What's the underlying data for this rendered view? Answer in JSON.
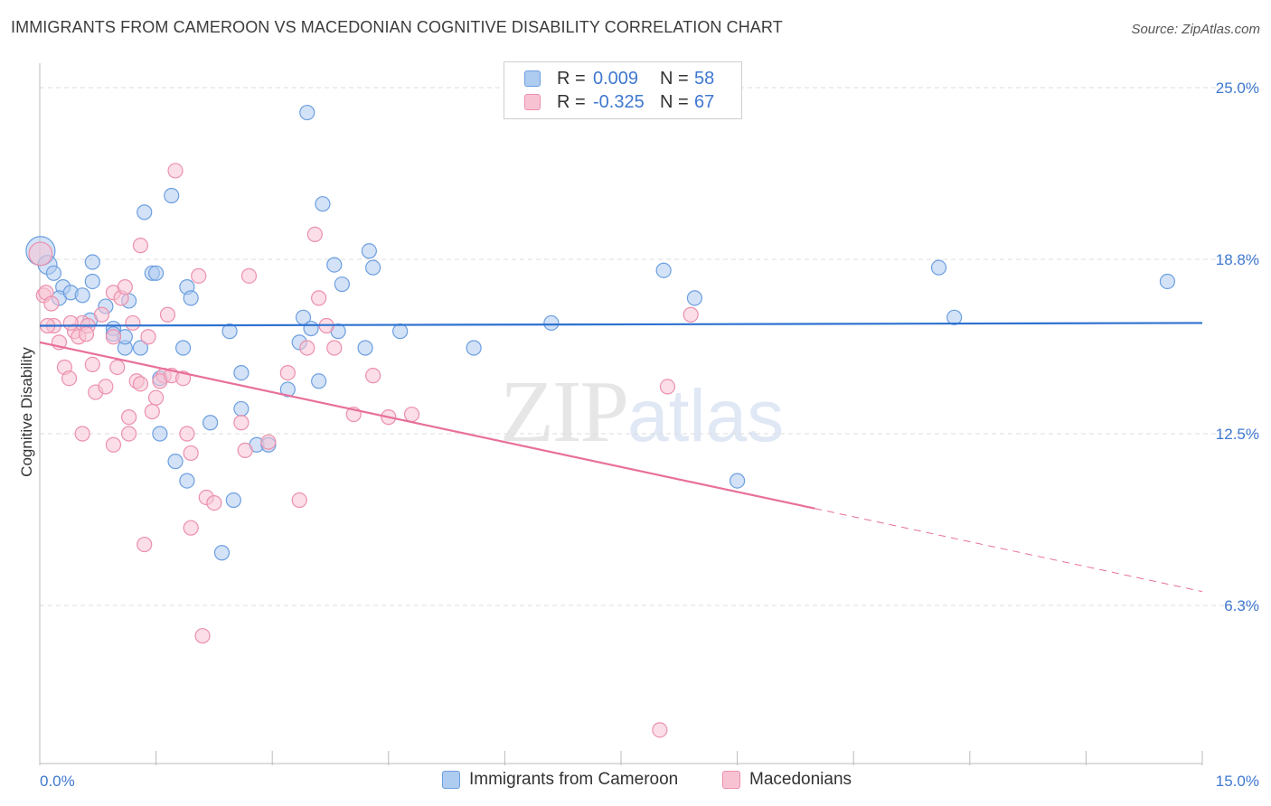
{
  "title": "IMMIGRANTS FROM CAMEROON VS MACEDONIAN COGNITIVE DISABILITY CORRELATION CHART",
  "source": "Source: ZipAtlas.com",
  "watermark": {
    "zip": "ZIP",
    "atlas": "atlas"
  },
  "legend_top": {
    "rows": [
      {
        "r_label": "R =",
        "r_value": "0.009",
        "n_label": "N =",
        "n_value": "58"
      },
      {
        "r_label": "R =",
        "r_value": "-0.325",
        "n_label": "N =",
        "n_value": "67"
      }
    ]
  },
  "colors": {
    "blue_fill": "#aecbf0",
    "blue_stroke": "#6c9fe0",
    "blue_line": "#2f72d0",
    "pink_fill": "#f7c3d3",
    "pink_stroke": "#ec90ad",
    "pink_line": "#e8709a",
    "tick_text": "#3f78d0",
    "grid": "#dddddd"
  },
  "chart_data": {
    "type": "scatter",
    "title": "IMMIGRANTS FROM CAMEROON VS MACEDONIAN COGNITIVE DISABILITY CORRELATION CHART",
    "xlabel": "",
    "ylabel": "Cognitive Disability",
    "xlim": [
      0,
      15
    ],
    "ylim": [
      0,
      25.8
    ],
    "x_tick_labels": [
      "0.0%",
      "15.0%"
    ],
    "y_ticks": [
      6.3,
      12.5,
      18.8,
      25.0
    ],
    "y_tick_labels": [
      "6.3%",
      "12.5%",
      "18.8%",
      "25.0%"
    ],
    "grid": true,
    "legend_position": "top-center",
    "series": [
      {
        "name": "Immigrants from Cameroon",
        "r": 0.009,
        "n": 58,
        "trend": {
          "x": [
            0,
            15
          ],
          "y": [
            16.4,
            16.5
          ]
        },
        "points": [
          [
            0.01,
            19.1,
            2
          ],
          [
            0.1,
            18.6,
            1.3
          ],
          [
            0.18,
            18.3,
            1
          ],
          [
            0.3,
            17.8,
            1
          ],
          [
            0.25,
            17.4,
            1
          ],
          [
            0.4,
            17.6,
            1
          ],
          [
            0.55,
            17.5,
            1
          ],
          [
            0.68,
            18.7,
            1
          ],
          [
            0.68,
            18.0,
            1
          ],
          [
            0.85,
            17.1,
            1
          ],
          [
            0.65,
            16.6,
            1
          ],
          [
            0.95,
            16.3,
            1
          ],
          [
            1.15,
            17.3,
            1
          ],
          [
            1.45,
            18.3,
            1
          ],
          [
            1.5,
            18.3,
            1
          ],
          [
            1.35,
            20.5,
            1
          ],
          [
            1.7,
            21.1,
            1
          ],
          [
            1.9,
            17.8,
            1
          ],
          [
            1.95,
            17.4,
            1
          ],
          [
            1.1,
            15.6,
            1
          ],
          [
            0.95,
            16.1,
            1
          ],
          [
            1.1,
            16.0,
            1
          ],
          [
            1.3,
            15.6,
            1
          ],
          [
            1.85,
            15.6,
            1
          ],
          [
            2.45,
            16.2,
            1
          ],
          [
            2.6,
            14.7,
            1
          ],
          [
            2.6,
            13.4,
            1
          ],
          [
            2.2,
            12.9,
            1
          ],
          [
            1.55,
            14.5,
            1
          ],
          [
            1.55,
            12.5,
            1
          ],
          [
            1.75,
            11.5,
            1
          ],
          [
            1.9,
            10.8,
            1
          ],
          [
            2.5,
            10.1,
            1
          ],
          [
            2.35,
            8.2,
            1
          ],
          [
            2.8,
            12.1,
            1
          ],
          [
            2.95,
            12.1,
            1
          ],
          [
            3.2,
            14.1,
            1
          ],
          [
            3.35,
            15.8,
            1
          ],
          [
            3.4,
            16.7,
            1
          ],
          [
            3.5,
            16.3,
            1
          ],
          [
            3.6,
            14.4,
            1
          ],
          [
            3.65,
            20.8,
            1
          ],
          [
            3.8,
            18.6,
            1
          ],
          [
            3.85,
            16.2,
            1
          ],
          [
            3.9,
            17.9,
            1
          ],
          [
            4.2,
            15.6,
            1
          ],
          [
            4.25,
            19.1,
            1
          ],
          [
            4.3,
            18.5,
            1
          ],
          [
            4.65,
            16.2,
            1
          ],
          [
            3.45,
            24.1,
            1
          ],
          [
            5.6,
            15.6,
            1
          ],
          [
            6.6,
            16.5,
            1
          ],
          [
            8.05,
            18.4,
            1
          ],
          [
            8.45,
            17.4,
            1
          ],
          [
            9.0,
            10.8,
            1
          ],
          [
            11.6,
            18.5,
            1
          ],
          [
            11.8,
            16.7,
            1
          ],
          [
            14.55,
            18.0,
            1
          ]
        ]
      },
      {
        "name": "Macedonians",
        "r": -0.325,
        "n": 67,
        "trend": {
          "x": [
            0,
            10
          ],
          "y": [
            15.8,
            9.8
          ]
        },
        "trend_dashed": {
          "x": [
            10,
            15
          ],
          "y": [
            9.8,
            6.8
          ]
        },
        "points": [
          [
            0.01,
            19.0,
            1.6
          ],
          [
            0.05,
            17.5,
            1
          ],
          [
            0.08,
            17.6,
            1
          ],
          [
            0.15,
            17.2,
            1
          ],
          [
            0.18,
            16.4,
            1
          ],
          [
            0.1,
            16.4,
            1
          ],
          [
            0.25,
            15.8,
            1
          ],
          [
            0.32,
            14.9,
            1
          ],
          [
            0.38,
            14.5,
            1
          ],
          [
            0.45,
            16.2,
            1
          ],
          [
            0.5,
            16.0,
            1
          ],
          [
            0.55,
            16.5,
            1
          ],
          [
            0.62,
            16.4,
            1
          ],
          [
            0.68,
            15.0,
            1
          ],
          [
            0.72,
            14.0,
            1
          ],
          [
            0.8,
            16.8,
            1
          ],
          [
            0.85,
            14.2,
            1
          ],
          [
            0.95,
            17.6,
            1
          ],
          [
            1.0,
            14.9,
            1
          ],
          [
            1.05,
            17.4,
            1
          ],
          [
            1.1,
            17.8,
            1
          ],
          [
            1.2,
            16.5,
            1
          ],
          [
            1.25,
            14.4,
            1
          ],
          [
            1.3,
            14.3,
            1
          ],
          [
            1.4,
            16.0,
            1
          ],
          [
            1.5,
            13.8,
            1
          ],
          [
            1.6,
            14.6,
            1
          ],
          [
            1.55,
            14.4,
            1
          ],
          [
            1.65,
            16.8,
            1
          ],
          [
            1.7,
            14.6,
            1
          ],
          [
            1.85,
            14.5,
            1
          ],
          [
            1.9,
            12.5,
            1
          ],
          [
            1.95,
            11.8,
            1
          ],
          [
            1.75,
            22.0,
            1
          ],
          [
            1.3,
            19.3,
            1
          ],
          [
            2.05,
            18.2,
            1
          ],
          [
            2.15,
            10.2,
            1
          ],
          [
            2.25,
            10.0,
            1
          ],
          [
            1.95,
            9.1,
            1
          ],
          [
            1.35,
            8.5,
            1
          ],
          [
            2.6,
            12.9,
            1
          ],
          [
            2.65,
            11.9,
            1
          ],
          [
            2.7,
            18.2,
            1
          ],
          [
            2.95,
            12.2,
            1
          ],
          [
            3.2,
            14.7,
            1
          ],
          [
            3.45,
            15.6,
            1
          ],
          [
            3.35,
            10.1,
            1
          ],
          [
            3.55,
            19.7,
            1
          ],
          [
            3.6,
            17.4,
            1
          ],
          [
            3.7,
            16.4,
            1
          ],
          [
            3.8,
            15.6,
            1
          ],
          [
            4.05,
            13.2,
            1
          ],
          [
            4.3,
            14.6,
            1
          ],
          [
            4.5,
            13.1,
            1
          ],
          [
            4.8,
            13.2,
            1
          ],
          [
            8.1,
            14.2,
            1
          ],
          [
            8.4,
            16.8,
            1
          ],
          [
            2.1,
            5.2,
            1
          ],
          [
            8.0,
            1.8,
            1
          ],
          [
            0.55,
            12.5,
            1
          ],
          [
            0.95,
            12.1,
            1
          ],
          [
            1.15,
            12.5,
            1
          ],
          [
            1.15,
            13.1,
            1
          ],
          [
            1.45,
            13.3,
            1
          ],
          [
            0.4,
            16.5,
            1
          ],
          [
            0.95,
            16.0,
            1
          ],
          [
            0.6,
            16.1,
            1
          ]
        ]
      }
    ]
  },
  "bottom_legend": [
    {
      "label": "Immigrants from Cameroon"
    },
    {
      "label": "Macedonians"
    }
  ]
}
